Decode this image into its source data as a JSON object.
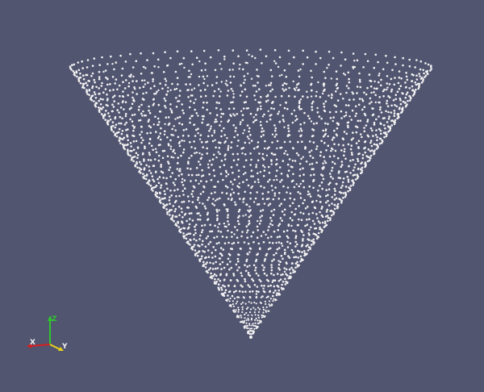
{
  "viewport": {
    "background_color": "#525570",
    "point_color": "#f2f2f2",
    "representation": "point-cloud",
    "shape": "inverted-cone"
  },
  "orientation_axes": {
    "x": {
      "label": "X",
      "color": "#d42020"
    },
    "y": {
      "label": "Y",
      "color": "#e8d21a"
    },
    "z": {
      "label": "Z",
      "color": "#2ec42e"
    }
  }
}
